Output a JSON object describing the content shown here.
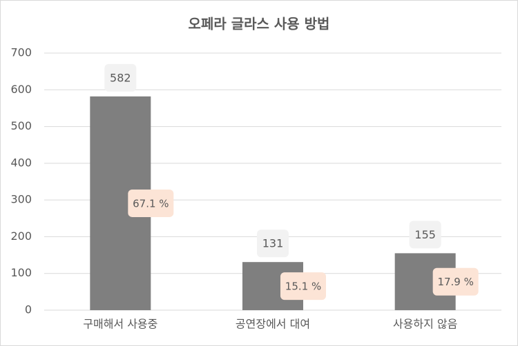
{
  "chart_data": {
    "type": "bar",
    "title": "오페라 글라스 사용 방법",
    "categories": [
      "구매해서 사용중",
      "공연장에서 대여",
      "사용하지 않음"
    ],
    "values": [
      582,
      131,
      155
    ],
    "color": "#7f7f7f",
    "shares": {
      "values": [
        67.1,
        15.1,
        17.9
      ],
      "value_labels": [
        "67.1 %",
        "15.1 %",
        "17.9 %"
      ]
    },
    "ylim": [
      0,
      700
    ],
    "yticks": [
      0,
      100,
      200,
      300,
      400,
      500,
      600,
      700
    ],
    "grid": true
  }
}
